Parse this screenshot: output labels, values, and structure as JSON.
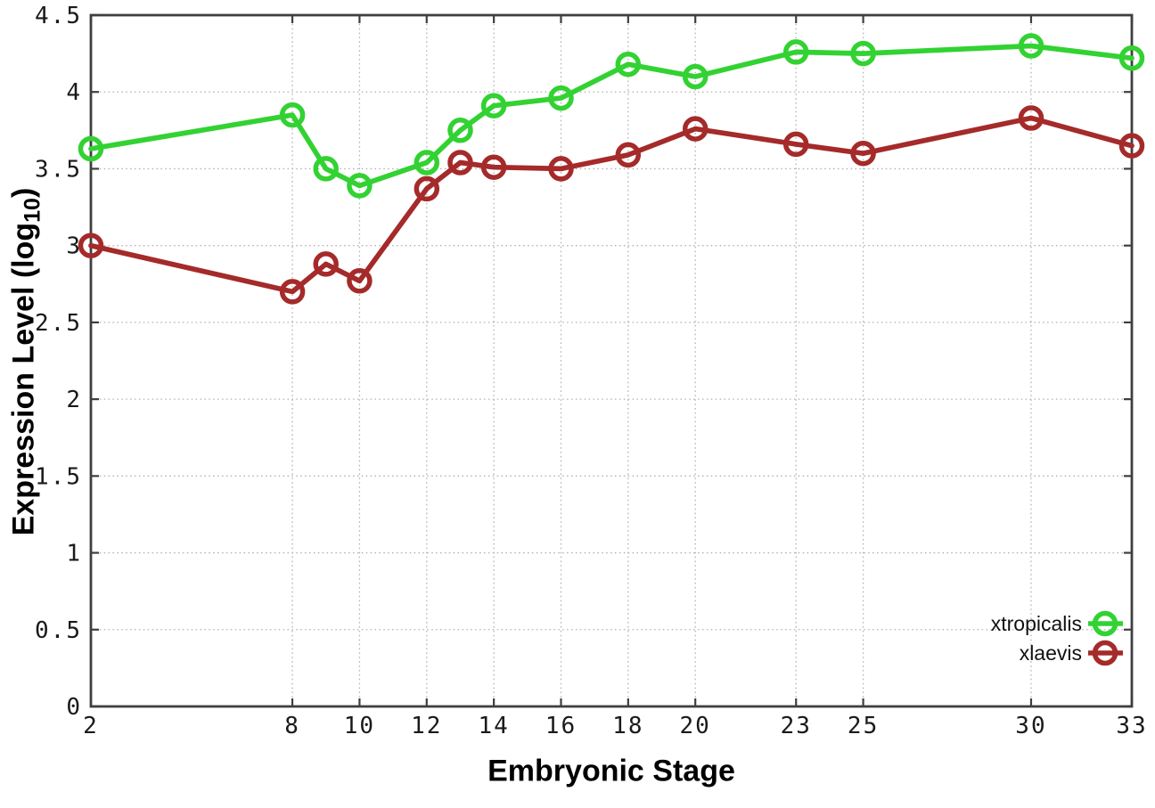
{
  "chart_data": {
    "type": "line",
    "title": "",
    "xlabel": "Embryonic Stage",
    "ylabel": "Expression Level (log10)",
    "ylabel_rich": {
      "pre": "Expression Level (log",
      "sub": "10",
      "post": ")"
    },
    "x": [
      2,
      8,
      9,
      10,
      12,
      13,
      14,
      16,
      18,
      20,
      23,
      25,
      30,
      33
    ],
    "series": [
      {
        "name": "xtropicalis",
        "color": "#32d232",
        "marker": "open-circle",
        "values": [
          3.63,
          3.85,
          3.5,
          3.39,
          3.54,
          3.75,
          3.91,
          3.96,
          4.18,
          4.1,
          4.26,
          4.25,
          4.3,
          4.22
        ]
      },
      {
        "name": "xlaevis",
        "color": "#a52a2a",
        "marker": "open-circle",
        "values": [
          3.0,
          2.7,
          2.88,
          2.77,
          3.37,
          3.54,
          3.51,
          3.5,
          3.59,
          3.76,
          3.66,
          3.6,
          3.83,
          3.65
        ]
      }
    ],
    "xticks": [
      2,
      8,
      10,
      12,
      14,
      16,
      18,
      20,
      23,
      25,
      30,
      33
    ],
    "yticks": [
      0,
      0.5,
      1,
      1.5,
      2,
      2.5,
      3,
      3.5,
      4,
      4.5
    ],
    "xlim": [
      2,
      33
    ],
    "ylim": [
      0,
      4.5
    ],
    "grid": true,
    "legend_position": "bottom-right"
  },
  "colors": {
    "background": "#ffffff",
    "border": "#3f3f3f",
    "gridline": "#b0b0b0",
    "tick_text": "#1a1a1a",
    "series_green": "#32d232",
    "series_brown": "#a52a2a"
  }
}
